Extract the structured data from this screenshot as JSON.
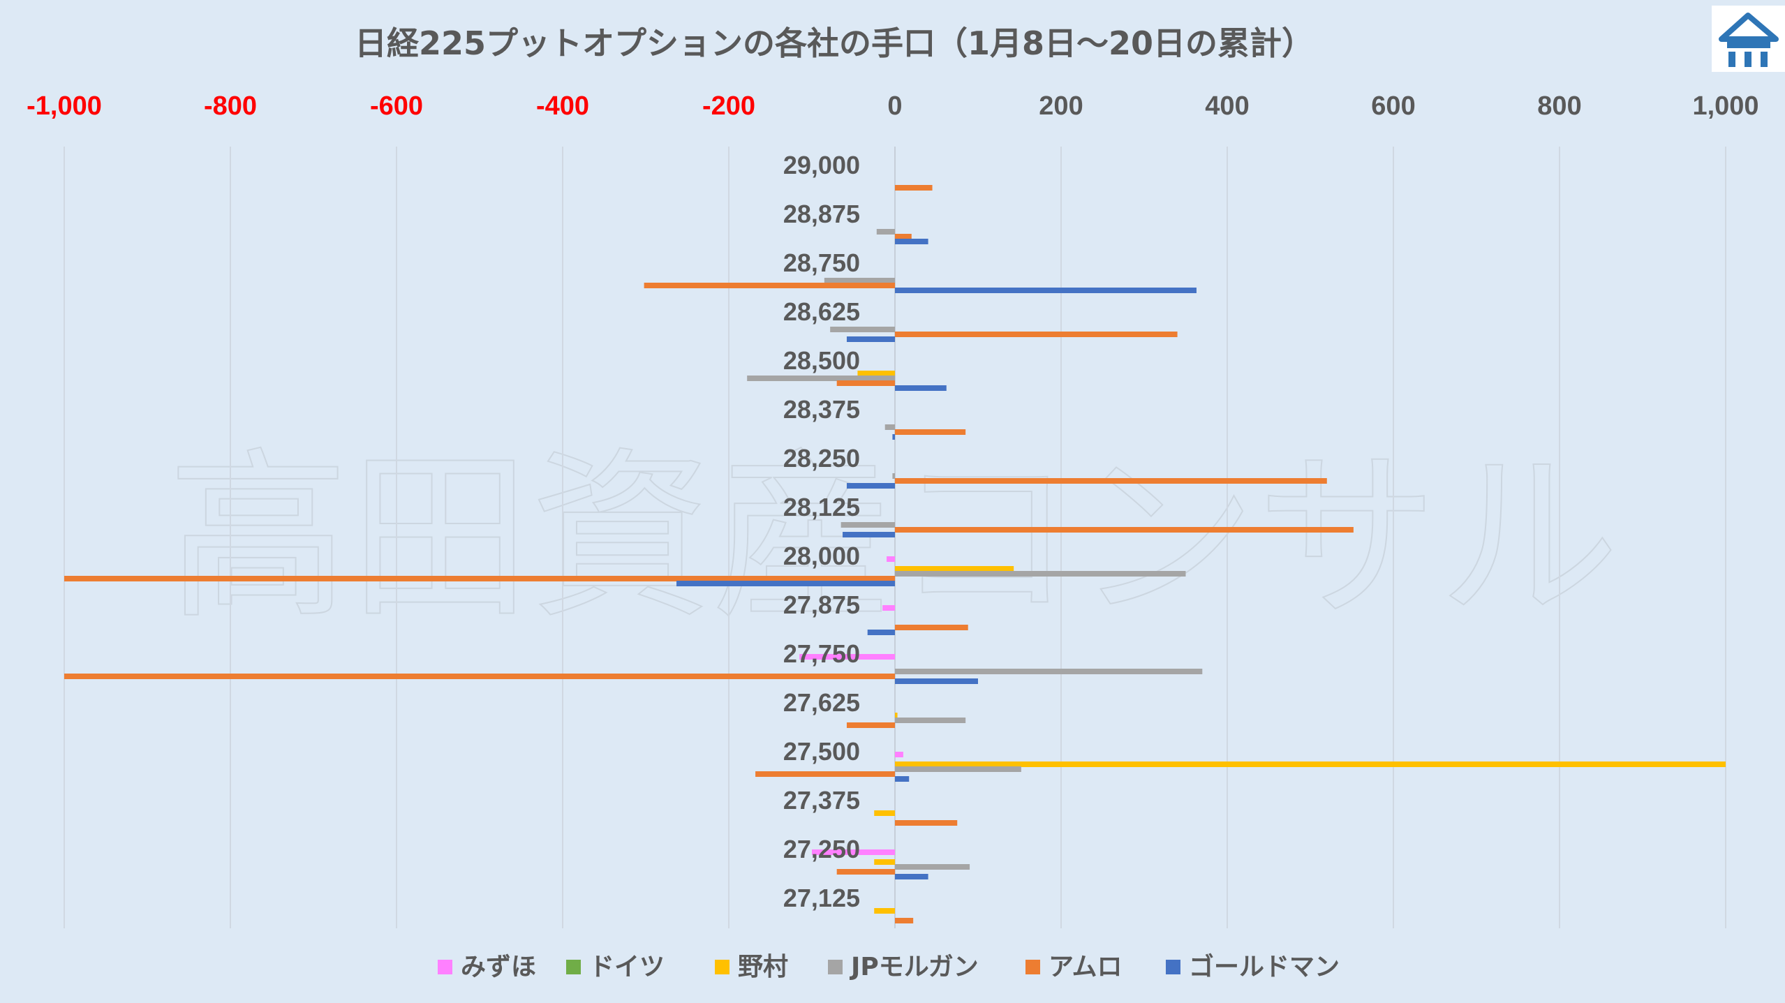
{
  "chart_data": {
    "type": "bar",
    "orientation": "horizontal",
    "title": "日経225プットオプションの各社の手口（1月8日～20日の累計）",
    "watermark": "高田資産コンサル",
    "logo": "logo-icon",
    "xlim": [
      -1000,
      1000
    ],
    "xticks": [
      -1000,
      -800,
      -600,
      -400,
      -200,
      0,
      200,
      400,
      600,
      800,
      1000
    ],
    "xtick_labels": [
      "-1,000",
      "-800",
      "-600",
      "-400",
      "-200",
      "0",
      "200",
      "400",
      "600",
      "800",
      "1,000"
    ],
    "negative_tick_color": "#ff0000",
    "tick_color": "#595959",
    "grid": true,
    "legend_position": "bottom",
    "categories": [
      "29,000",
      "28,875",
      "28,750",
      "28,625",
      "28,500",
      "28,375",
      "28,250",
      "28,125",
      "28,000",
      "27,875",
      "27,750",
      "27,625",
      "27,500",
      "27,375",
      "27,250",
      "27,125"
    ],
    "series": [
      {
        "name": "みずほ",
        "color": "#ff80ff",
        "values": [
          0,
          0,
          0,
          0,
          0,
          0,
          0,
          0,
          -10,
          -15,
          -115,
          0,
          10,
          0,
          -100,
          0
        ]
      },
      {
        "name": "ドイツ",
        "color": "#70ad47",
        "values": [
          0,
          0,
          0,
          0,
          0,
          0,
          0,
          0,
          0,
          0,
          0,
          0,
          0,
          0,
          0,
          0
        ]
      },
      {
        "name": "野村",
        "color": "#ffc000",
        "values": [
          0,
          0,
          0,
          0,
          -45,
          0,
          0,
          0,
          143,
          0,
          0,
          3,
          1000,
          -25,
          -25,
          -25
        ]
      },
      {
        "name": "JPモルガン",
        "color": "#a5a5a5",
        "values": [
          0,
          -22,
          -85,
          -78,
          -178,
          -12,
          -3,
          -65,
          350,
          0,
          370,
          85,
          152,
          0,
          90,
          0
        ]
      },
      {
        "name": "アムロ",
        "color": "#ed7d31",
        "values": [
          45,
          20,
          -302,
          340,
          -70,
          85,
          520,
          552,
          -1000,
          88,
          -1000,
          -58,
          -168,
          75,
          -70,
          22
        ]
      },
      {
        "name": "ゴールドマン",
        "color": "#4472c4",
        "values": [
          0,
          40,
          363,
          -58,
          62,
          -3,
          -58,
          -63,
          -263,
          -33,
          100,
          0,
          17,
          0,
          40,
          0
        ]
      }
    ]
  }
}
